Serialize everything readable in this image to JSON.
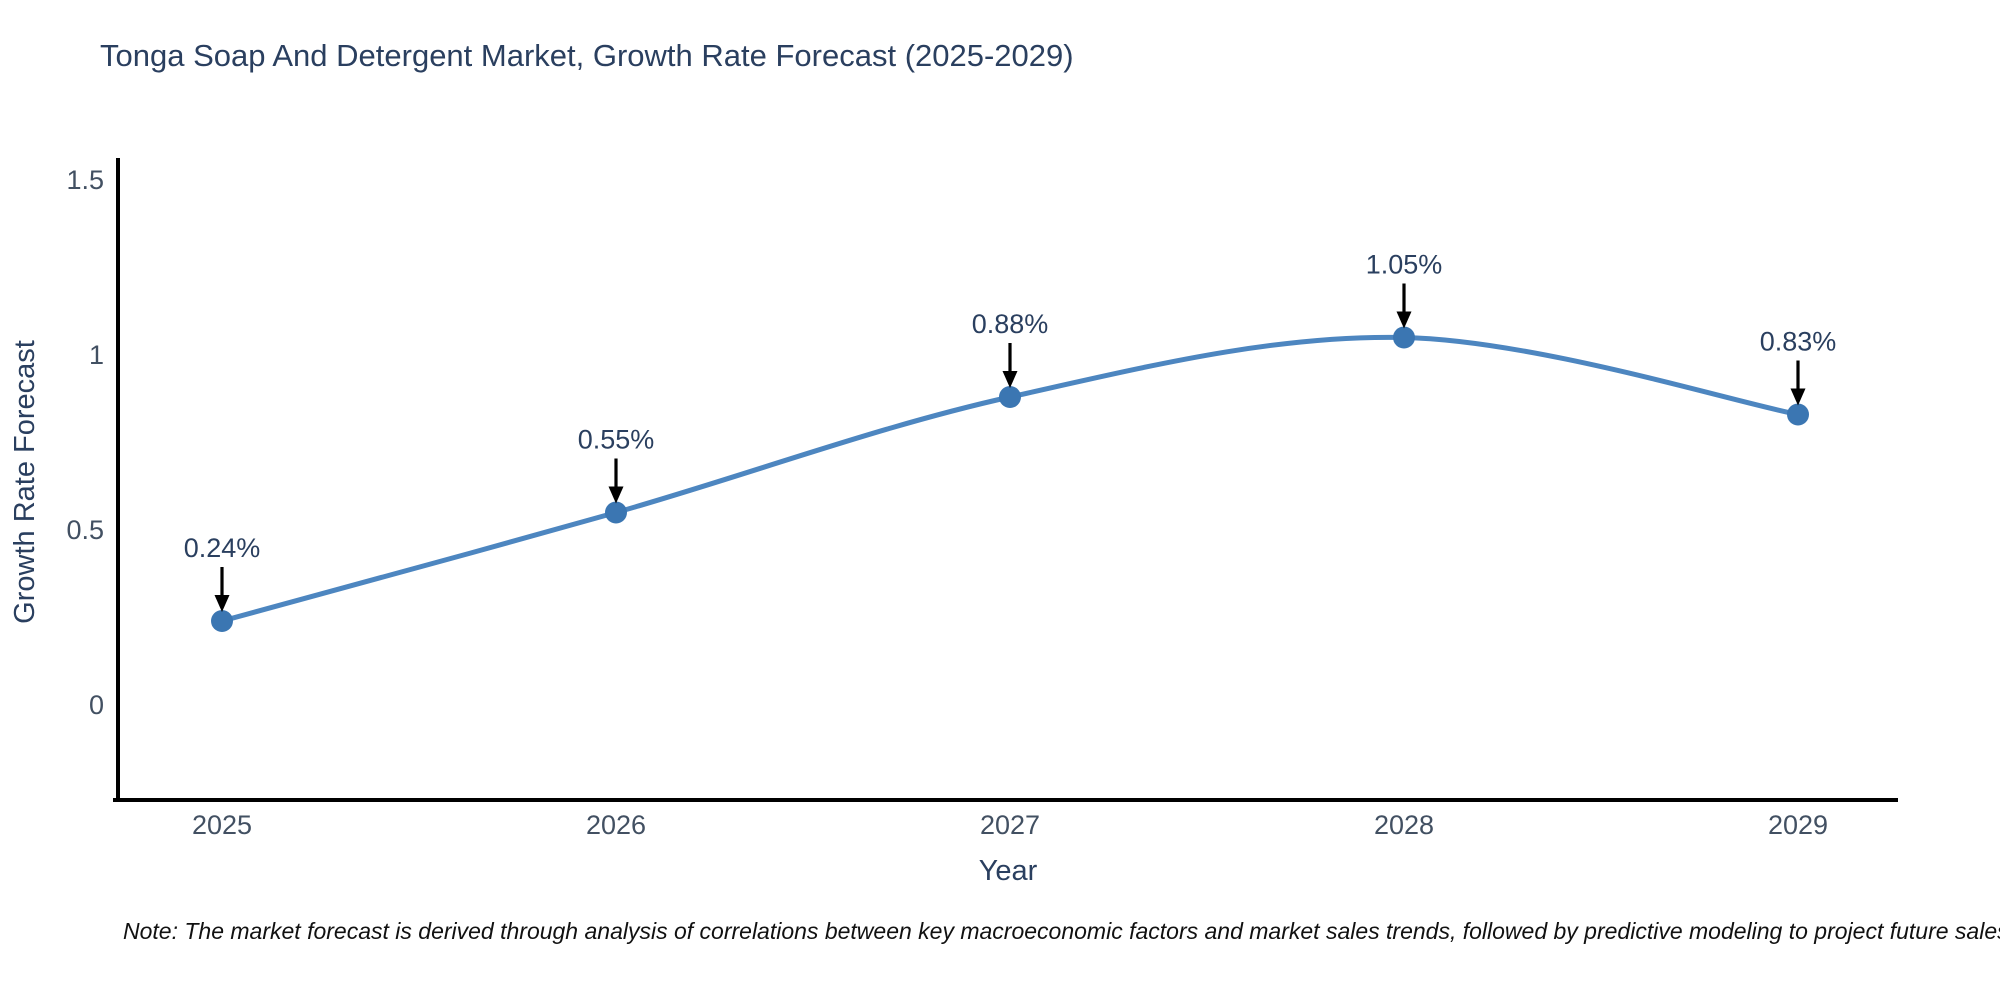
{
  "title": "Tonga Soap And Detergent Market, Growth Rate Forecast (2025-2029)",
  "note": "Note: The market forecast is derived through analysis of correlations between key macroeconomic factors and market sales trends, followed by predictive modeling to project future sales",
  "chart_data": {
    "type": "line",
    "title": "Tonga Soap And Detergent Market, Growth Rate Forecast (2025-2029)",
    "categories": [
      "2025",
      "2026",
      "2027",
      "2028",
      "2029"
    ],
    "series": [
      {
        "name": "Growth Rate Forecast",
        "values": [
          0.24,
          0.55,
          0.88,
          1.05,
          0.83
        ]
      }
    ],
    "point_labels": [
      "0.24%",
      "0.55%",
      "0.88%",
      "1.05%",
      "0.83%"
    ],
    "xlabel": "Year",
    "ylabel": "Growth Rate Forecast",
    "yticks": [
      "0",
      "0.5",
      "1",
      "1.5"
    ],
    "ytick_values": [
      0,
      0.5,
      1,
      1.5
    ],
    "ylim": [
      -0.28,
      1.55
    ],
    "grid": false,
    "legend_position": "none",
    "line_shape": "spline",
    "colors": {
      "line": "#4d86c0",
      "marker": "#3b76b2",
      "arrow": "#000000",
      "axis": "#000000",
      "title_text": "#2a3f5f",
      "tick_text": "#425062"
    }
  }
}
